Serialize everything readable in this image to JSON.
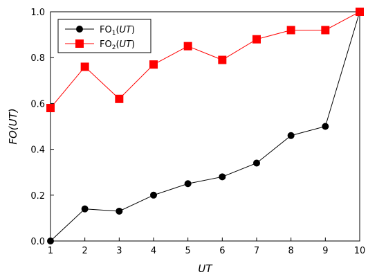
{
  "chart_data": {
    "type": "line",
    "xlabel": "UT",
    "ylabel": "FO(UT)",
    "x": [
      1,
      2,
      3,
      4,
      5,
      6,
      7,
      8,
      9,
      10
    ],
    "xlim": [
      1,
      10
    ],
    "ylim": [
      0,
      1
    ],
    "x_ticks": [
      "1",
      "2",
      "3",
      "4",
      "5",
      "6",
      "7",
      "8",
      "9",
      "10"
    ],
    "y_ticks": [
      "0.0",
      "0.2",
      "0.4",
      "0.6",
      "0.8",
      "1.0"
    ],
    "grid": false,
    "legend_position": "top-left",
    "series": [
      {
        "name": "FO₁(UT)",
        "name_main": "FO",
        "name_sub": "1",
        "name_arg": "UT",
        "color": "#000000",
        "marker": "circle",
        "values": [
          0.0,
          0.14,
          0.13,
          0.2,
          0.25,
          0.28,
          0.34,
          0.46,
          0.5,
          1.0
        ]
      },
      {
        "name": "FO₂(UT)",
        "name_main": "FO",
        "name_sub": "2",
        "name_arg": "UT",
        "color": "#ff0000",
        "marker": "square",
        "values": [
          0.58,
          0.76,
          0.62,
          0.77,
          0.85,
          0.79,
          0.88,
          0.92,
          0.92,
          1.0
        ]
      }
    ]
  }
}
